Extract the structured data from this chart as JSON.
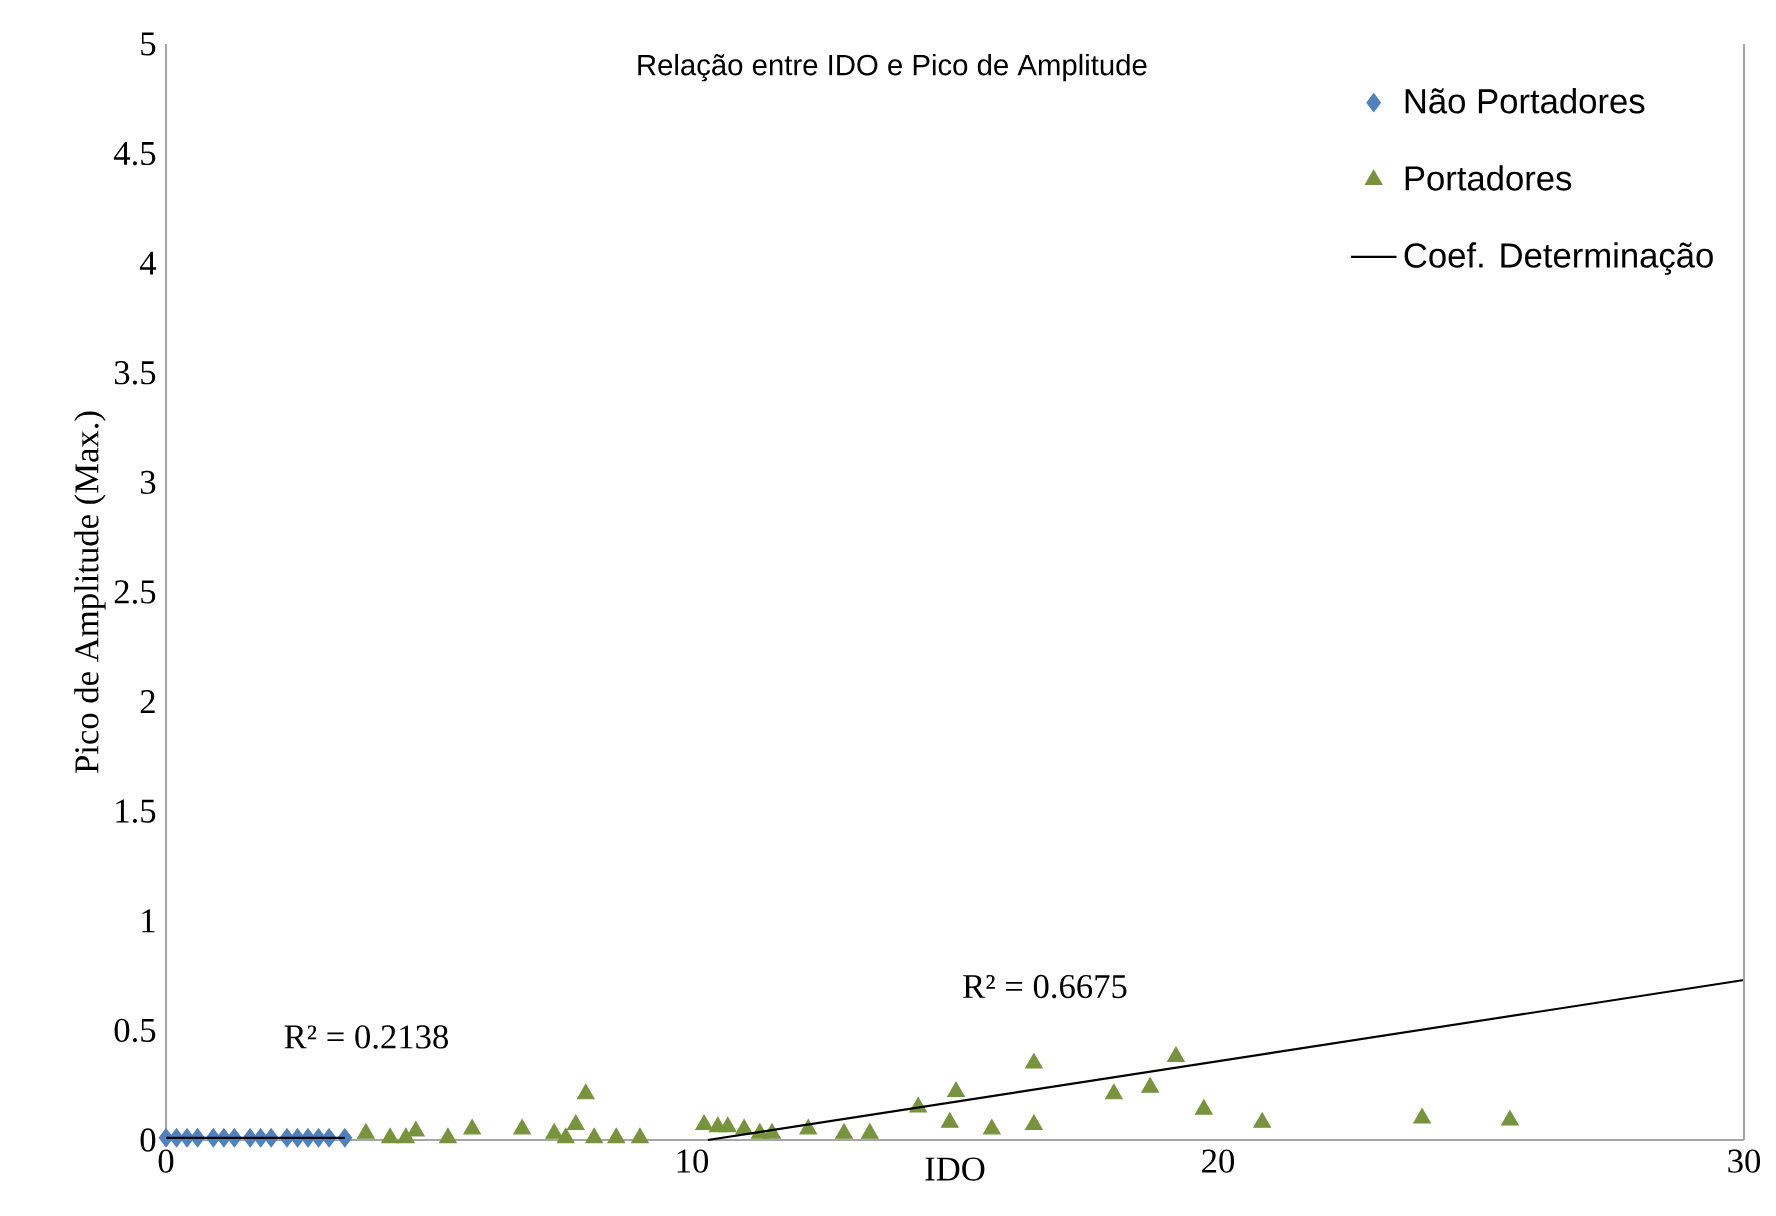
{
  "chart_data": {
    "type": "scatter",
    "title": "Relação entre IDO e  Pico de Amplitude",
    "xlabel": "IDO",
    "ylabel": "Pico de Amplitude  (Max.)",
    "xlim": [
      0,
      30
    ],
    "xticks": [
      0,
      10,
      20,
      30
    ],
    "ylim": [
      0,
      5
    ],
    "yticks": [
      0,
      0.5,
      1,
      1.5,
      2,
      2.5,
      3,
      3.5,
      4,
      4.5,
      5
    ],
    "legend": "top right",
    "series": [
      {
        "name": "Não Portadores",
        "marker": "diamond",
        "color": "#4f81bd",
        "x": [
          0.0,
          0.2,
          0.4,
          0.6,
          0.9,
          1.1,
          1.3,
          1.6,
          1.8,
          2.0,
          2.3,
          2.5,
          2.7,
          2.9,
          3.1,
          3.4
        ],
        "values": [
          0.01,
          0.01,
          0.01,
          0.01,
          0.01,
          0.01,
          0.01,
          0.01,
          0.01,
          0.01,
          0.01,
          0.01,
          0.01,
          0.01,
          0.01,
          0.01
        ]
      },
      {
        "name": "Portadores",
        "marker": "triangle",
        "color": "#77933c",
        "x": [
          3.8,
          4.26,
          4.56,
          4.75,
          5.36,
          5.82,
          6.77,
          7.38,
          7.6,
          7.79,
          7.98,
          8.14,
          8.56,
          9.01,
          10.23,
          10.49,
          10.68,
          10.99,
          11.29,
          11.52,
          12.21,
          12.89,
          13.38,
          14.3,
          14.9,
          15.02,
          15.7,
          16.5,
          16.5,
          18.02,
          18.71,
          19.2,
          19.73,
          20.84,
          23.88,
          25.55
        ],
        "values": [
          0.03,
          0.01,
          0.01,
          0.04,
          0.01,
          0.05,
          0.05,
          0.03,
          0.01,
          0.07,
          0.21,
          0.01,
          0.01,
          0.01,
          0.07,
          0.06,
          0.06,
          0.05,
          0.03,
          0.03,
          0.05,
          0.03,
          0.03,
          0.15,
          0.08,
          0.22,
          0.05,
          0.35,
          0.07,
          0.21,
          0.24,
          0.38,
          0.14,
          0.08,
          0.1,
          0.09
        ]
      },
      {
        "type": "line",
        "marker": "none",
        "color": "#000000",
        "x": [
          0,
          3.4
        ],
        "values": [
          0.01,
          0.01
        ]
      },
      {
        "name": "Coef. Determinação",
        "type": "line",
        "marker": "none",
        "color": "#000000",
        "x": [
          10.3,
          30
        ],
        "values": [
          0.0,
          0.73
        ]
      }
    ],
    "annotations": [
      "R² = 0.2138",
      "R² = 0.6675"
    ]
  }
}
